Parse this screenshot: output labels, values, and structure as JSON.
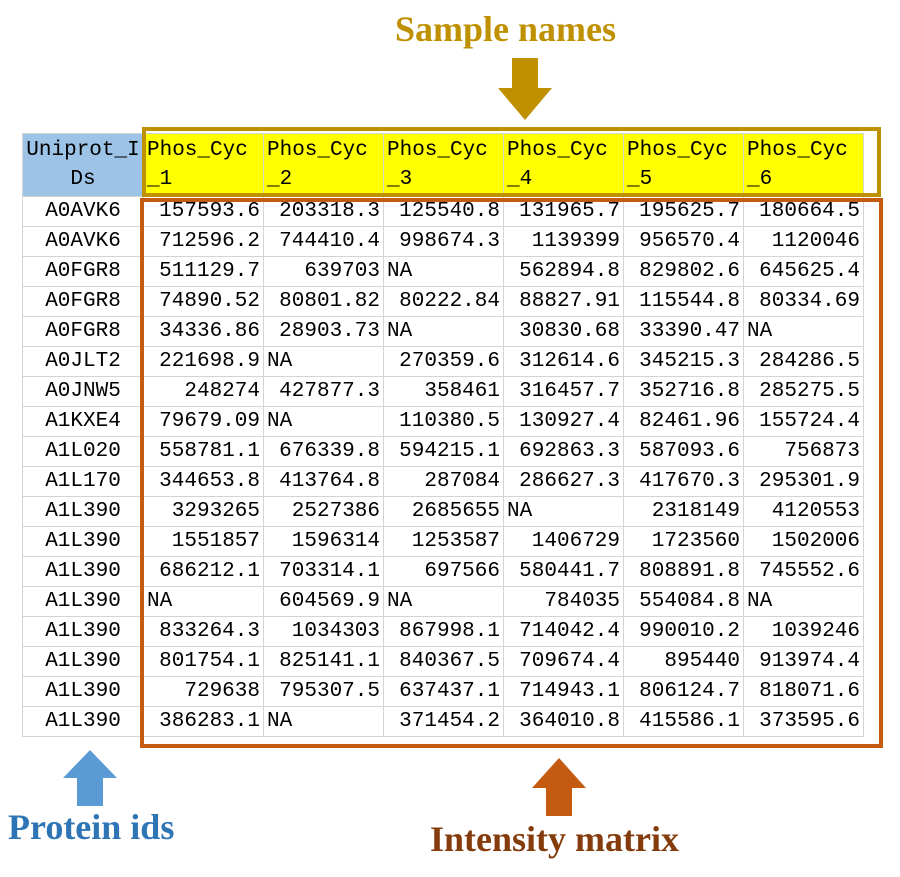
{
  "labels": {
    "sample_names": "Sample names",
    "protein_ids": "Protein ids",
    "intensity_matrix": "Intensity matrix"
  },
  "colors": {
    "sample_names": "#BF9000",
    "protein_ids": "#5B9BD5",
    "intensity_matrix": "#C55A11",
    "header_fill": "#FFFF00",
    "id_header_fill": "#9DC3E6"
  },
  "table": {
    "id_header": "Uniprot_IDs",
    "sample_headers": [
      "Phos_Cyc_1",
      "Phos_Cyc_2",
      "Phos_Cyc_3",
      "Phos_Cyc_4",
      "Phos_Cyc_5",
      "Phos_Cyc_6"
    ],
    "rows": [
      {
        "id": "A0AVK6",
        "values": [
          "157593.6",
          "203318.3",
          "125540.8",
          "131965.7",
          "195625.7",
          "180664.5"
        ]
      },
      {
        "id": "A0AVK6",
        "values": [
          "712596.2",
          "744410.4",
          "998674.3",
          "1139399",
          "956570.4",
          "1120046"
        ]
      },
      {
        "id": "A0FGR8",
        "values": [
          "511129.7",
          "639703",
          "NA",
          "562894.8",
          "829802.6",
          "645625.4"
        ]
      },
      {
        "id": "A0FGR8",
        "values": [
          "74890.52",
          "80801.82",
          "80222.84",
          "88827.91",
          "115544.8",
          "80334.69"
        ]
      },
      {
        "id": "A0FGR8",
        "values": [
          "34336.86",
          "28903.73",
          "NA",
          "30830.68",
          "33390.47",
          "NA"
        ]
      },
      {
        "id": "A0JLT2",
        "values": [
          "221698.9",
          "NA",
          "270359.6",
          "312614.6",
          "345215.3",
          "284286.5"
        ]
      },
      {
        "id": "A0JNW5",
        "values": [
          "248274",
          "427877.3",
          "358461",
          "316457.7",
          "352716.8",
          "285275.5"
        ]
      },
      {
        "id": "A1KXE4",
        "values": [
          "79679.09",
          "NA",
          "110380.5",
          "130927.4",
          "82461.96",
          "155724.4"
        ]
      },
      {
        "id": "A1L020",
        "values": [
          "558781.1",
          "676339.8",
          "594215.1",
          "692863.3",
          "587093.6",
          "756873"
        ]
      },
      {
        "id": "A1L170",
        "values": [
          "344653.8",
          "413764.8",
          "287084",
          "286627.3",
          "417670.3",
          "295301.9"
        ]
      },
      {
        "id": "A1L390",
        "values": [
          "3293265",
          "2527386",
          "2685655",
          "NA",
          "2318149",
          "4120553"
        ]
      },
      {
        "id": "A1L390",
        "values": [
          "1551857",
          "1596314",
          "1253587",
          "1406729",
          "1723560",
          "1502006"
        ]
      },
      {
        "id": "A1L390",
        "values": [
          "686212.1",
          "703314.1",
          "697566",
          "580441.7",
          "808891.8",
          "745552.6"
        ]
      },
      {
        "id": "A1L390",
        "values": [
          "NA",
          "604569.9",
          "NA",
          "784035",
          "554084.8",
          "NA"
        ]
      },
      {
        "id": "A1L390",
        "values": [
          "833264.3",
          "1034303",
          "867998.1",
          "714042.4",
          "990010.2",
          "1039246"
        ]
      },
      {
        "id": "A1L390",
        "values": [
          "801754.1",
          "825141.1",
          "840367.5",
          "709674.4",
          "895440",
          "913974.4"
        ]
      },
      {
        "id": "A1L390",
        "values": [
          "729638",
          "795307.5",
          "637437.1",
          "714943.1",
          "806124.7",
          "818071.6"
        ]
      },
      {
        "id": "A1L390",
        "values": [
          "386283.1",
          "NA",
          "371454.2",
          "364010.8",
          "415586.1",
          "373595.6"
        ]
      }
    ]
  }
}
